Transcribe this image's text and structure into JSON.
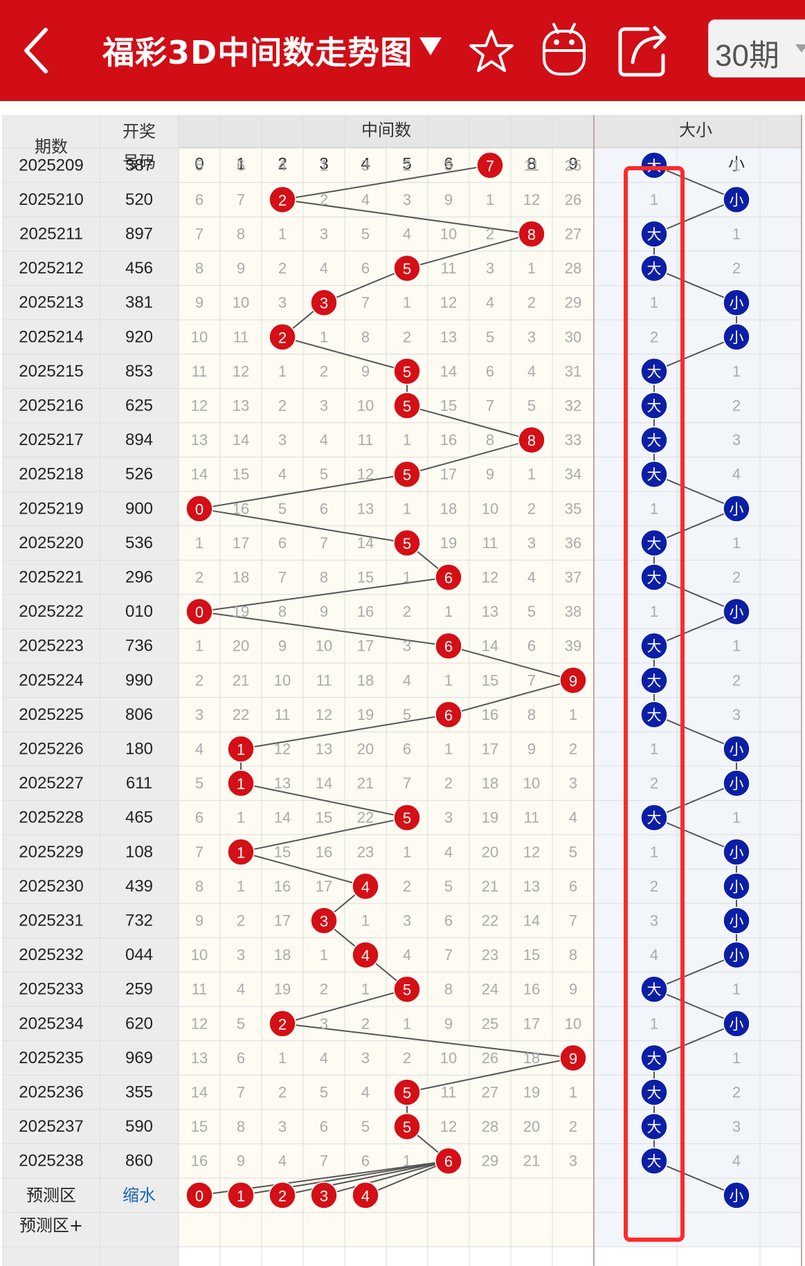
{
  "header": {
    "title": "福彩3D中间数走势图",
    "period_label": "30期",
    "icons": [
      "back-arrow-icon",
      "dropdown-triangle-icon",
      "star-icon",
      "android-robot-icon",
      "share-icon",
      "chevron-down-icon"
    ]
  },
  "table": {
    "col_period": "期数",
    "col_number_line1": "开奖",
    "col_number_line2": "号码",
    "group_middle": "中间数",
    "group_size": "大小",
    "digits": [
      "0",
      "1",
      "2",
      "3",
      "4",
      "5",
      "6",
      "7",
      "8",
      "9"
    ],
    "size_headers": [
      "大",
      "小"
    ],
    "rows": [
      {
        "period": "2025209",
        "number": "387",
        "mid": [
          "5",
          "6",
          "4",
          "1",
          "3",
          "2",
          "8",
          "7",
          "11",
          "25"
        ],
        "hit": 7,
        "size": [
          "大",
          "1"
        ],
        "size_hit": 0
      },
      {
        "period": "2025210",
        "number": "520",
        "mid": [
          "6",
          "7",
          "2",
          "2",
          "4",
          "3",
          "9",
          "1",
          "12",
          "26"
        ],
        "hit": 2,
        "size": [
          "1",
          "小"
        ],
        "size_hit": 1
      },
      {
        "period": "2025211",
        "number": "897",
        "mid": [
          "7",
          "8",
          "1",
          "3",
          "5",
          "4",
          "10",
          "2",
          "8",
          "27"
        ],
        "hit": 8,
        "size": [
          "大",
          "1"
        ],
        "size_hit": 0
      },
      {
        "period": "2025212",
        "number": "456",
        "mid": [
          "8",
          "9",
          "2",
          "4",
          "6",
          "5",
          "11",
          "3",
          "1",
          "28"
        ],
        "hit": 5,
        "size": [
          "大",
          "2"
        ],
        "size_hit": 0
      },
      {
        "period": "2025213",
        "number": "381",
        "mid": [
          "9",
          "10",
          "3",
          "3",
          "7",
          "1",
          "12",
          "4",
          "2",
          "29"
        ],
        "hit": 3,
        "size": [
          "1",
          "小"
        ],
        "size_hit": 1
      },
      {
        "period": "2025214",
        "number": "920",
        "mid": [
          "10",
          "11",
          "2",
          "1",
          "8",
          "2",
          "13",
          "5",
          "3",
          "30"
        ],
        "hit": 2,
        "size": [
          "2",
          "小"
        ],
        "size_hit": 1
      },
      {
        "period": "2025215",
        "number": "853",
        "mid": [
          "11",
          "12",
          "1",
          "2",
          "9",
          "5",
          "14",
          "6",
          "4",
          "31"
        ],
        "hit": 5,
        "size": [
          "大",
          "1"
        ],
        "size_hit": 0
      },
      {
        "period": "2025216",
        "number": "625",
        "mid": [
          "12",
          "13",
          "2",
          "3",
          "10",
          "5",
          "15",
          "7",
          "5",
          "32"
        ],
        "hit": 5,
        "size": [
          "大",
          "2"
        ],
        "size_hit": 0
      },
      {
        "period": "2025217",
        "number": "894",
        "mid": [
          "13",
          "14",
          "3",
          "4",
          "11",
          "1",
          "16",
          "8",
          "8",
          "33"
        ],
        "hit": 8,
        "size": [
          "大",
          "3"
        ],
        "size_hit": 0
      },
      {
        "period": "2025218",
        "number": "526",
        "mid": [
          "14",
          "15",
          "4",
          "5",
          "12",
          "5",
          "17",
          "9",
          "1",
          "34"
        ],
        "hit": 5,
        "size": [
          "大",
          "4"
        ],
        "size_hit": 0
      },
      {
        "period": "2025219",
        "number": "900",
        "mid": [
          "0",
          "16",
          "5",
          "6",
          "13",
          "1",
          "18",
          "10",
          "2",
          "35"
        ],
        "hit": 0,
        "size": [
          "1",
          "小"
        ],
        "size_hit": 1
      },
      {
        "period": "2025220",
        "number": "536",
        "mid": [
          "1",
          "17",
          "6",
          "7",
          "14",
          "5",
          "19",
          "11",
          "3",
          "36"
        ],
        "hit": 5,
        "size": [
          "大",
          "1"
        ],
        "size_hit": 0
      },
      {
        "period": "2025221",
        "number": "296",
        "mid": [
          "2",
          "18",
          "7",
          "8",
          "15",
          "1",
          "6",
          "12",
          "4",
          "37"
        ],
        "hit": 6,
        "size": [
          "大",
          "2"
        ],
        "size_hit": 0
      },
      {
        "period": "2025222",
        "number": "010",
        "mid": [
          "0",
          "19",
          "8",
          "9",
          "16",
          "2",
          "1",
          "13",
          "5",
          "38"
        ],
        "hit": 0,
        "size": [
          "1",
          "小"
        ],
        "size_hit": 1
      },
      {
        "period": "2025223",
        "number": "736",
        "mid": [
          "1",
          "20",
          "9",
          "10",
          "17",
          "3",
          "6",
          "14",
          "6",
          "39"
        ],
        "hit": 6,
        "size": [
          "大",
          "1"
        ],
        "size_hit": 0
      },
      {
        "period": "2025224",
        "number": "990",
        "mid": [
          "2",
          "21",
          "10",
          "11",
          "18",
          "4",
          "1",
          "15",
          "7",
          "9"
        ],
        "hit": 9,
        "size": [
          "大",
          "2"
        ],
        "size_hit": 0
      },
      {
        "period": "2025225",
        "number": "806",
        "mid": [
          "3",
          "22",
          "11",
          "12",
          "19",
          "5",
          "6",
          "16",
          "8",
          "1"
        ],
        "hit": 6,
        "size": [
          "大",
          "3"
        ],
        "size_hit": 0
      },
      {
        "period": "2025226",
        "number": "180",
        "mid": [
          "4",
          "1",
          "12",
          "13",
          "20",
          "6",
          "1",
          "17",
          "9",
          "2"
        ],
        "hit": 1,
        "size": [
          "1",
          "小"
        ],
        "size_hit": 1
      },
      {
        "period": "2025227",
        "number": "611",
        "mid": [
          "5",
          "1",
          "13",
          "14",
          "21",
          "7",
          "2",
          "18",
          "10",
          "3"
        ],
        "hit": 1,
        "size": [
          "2",
          "小"
        ],
        "size_hit": 1
      },
      {
        "period": "2025228",
        "number": "465",
        "mid": [
          "6",
          "1",
          "14",
          "15",
          "22",
          "5",
          "3",
          "19",
          "11",
          "4"
        ],
        "hit": 5,
        "size": [
          "大",
          "1"
        ],
        "size_hit": 0
      },
      {
        "period": "2025229",
        "number": "108",
        "mid": [
          "7",
          "1",
          "15",
          "16",
          "23",
          "1",
          "4",
          "20",
          "12",
          "5"
        ],
        "hit": 1,
        "size": [
          "1",
          "小"
        ],
        "size_hit": 1
      },
      {
        "period": "2025230",
        "number": "439",
        "mid": [
          "8",
          "1",
          "16",
          "17",
          "4",
          "2",
          "5",
          "21",
          "13",
          "6"
        ],
        "hit": 4,
        "size": [
          "2",
          "小"
        ],
        "size_hit": 1
      },
      {
        "period": "2025231",
        "number": "732",
        "mid": [
          "9",
          "2",
          "17",
          "3",
          "1",
          "3",
          "6",
          "22",
          "14",
          "7"
        ],
        "hit": 3,
        "size": [
          "3",
          "小"
        ],
        "size_hit": 1
      },
      {
        "period": "2025232",
        "number": "044",
        "mid": [
          "10",
          "3",
          "18",
          "1",
          "4",
          "4",
          "7",
          "23",
          "15",
          "8"
        ],
        "hit": 4,
        "size": [
          "4",
          "小"
        ],
        "size_hit": 1
      },
      {
        "period": "2025233",
        "number": "259",
        "mid": [
          "11",
          "4",
          "19",
          "2",
          "1",
          "5",
          "8",
          "24",
          "16",
          "9"
        ],
        "hit": 5,
        "size": [
          "大",
          "1"
        ],
        "size_hit": 0
      },
      {
        "period": "2025234",
        "number": "620",
        "mid": [
          "12",
          "5",
          "2",
          "3",
          "2",
          "1",
          "9",
          "25",
          "17",
          "10"
        ],
        "hit": 2,
        "size": [
          "1",
          "小"
        ],
        "size_hit": 1
      },
      {
        "period": "2025235",
        "number": "969",
        "mid": [
          "13",
          "6",
          "1",
          "4",
          "3",
          "2",
          "10",
          "26",
          "18",
          "9"
        ],
        "hit": 9,
        "size": [
          "大",
          "1"
        ],
        "size_hit": 0
      },
      {
        "period": "2025236",
        "number": "355",
        "mid": [
          "14",
          "7",
          "2",
          "5",
          "4",
          "5",
          "11",
          "27",
          "19",
          "1"
        ],
        "hit": 5,
        "size": [
          "大",
          "2"
        ],
        "size_hit": 0
      },
      {
        "period": "2025237",
        "number": "590",
        "mid": [
          "15",
          "8",
          "3",
          "6",
          "5",
          "5",
          "12",
          "28",
          "20",
          "2"
        ],
        "hit": 5,
        "size": [
          "大",
          "3"
        ],
        "size_hit": 0
      },
      {
        "period": "2025238",
        "number": "860",
        "mid": [
          "16",
          "9",
          "4",
          "7",
          "6",
          "1",
          "6",
          "29",
          "21",
          "3"
        ],
        "hit": 6,
        "size": [
          "大",
          "4"
        ],
        "size_hit": 0
      }
    ],
    "predict_row": {
      "label": "预测区",
      "shrink_label": "缩水",
      "digits": [
        "0",
        "1",
        "2",
        "3",
        "4"
      ],
      "size": "小"
    },
    "predict_row_plus": {
      "label": "预测区+"
    }
  },
  "colors": {
    "brand_red": "#d10d16",
    "ball_red": "#d40f15",
    "ball_blue": "#0b1fa6",
    "highlight_box": "#ff2a2a",
    "header_bg": "#e6e6e6",
    "middle_area_bg": "#fdfbf2",
    "size_area_bg": "#f2f6fb",
    "shrink_link": "#1565c0"
  }
}
